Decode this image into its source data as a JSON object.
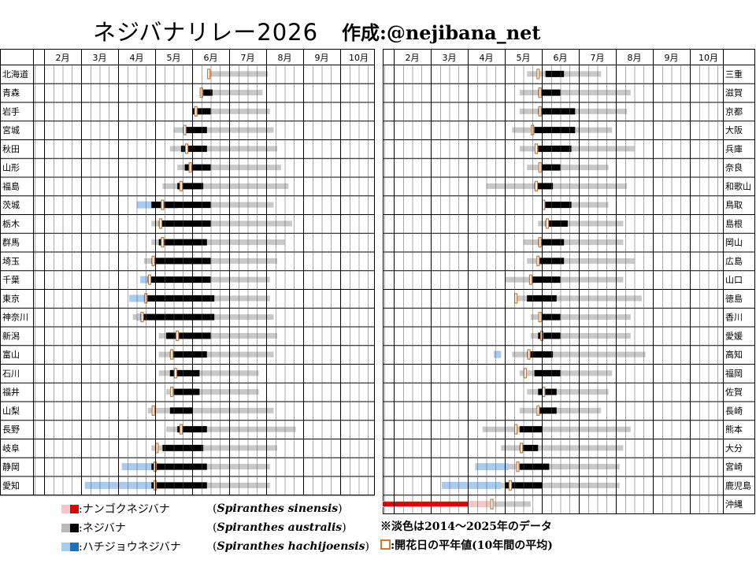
{
  "title": {
    "main": "ネジバナリレー2026",
    "author": "作成:@nejibana_net"
  },
  "chart_data": {
    "type": "heatmap",
    "months": [
      "2月",
      "3月",
      "4月",
      "5月",
      "6月",
      "7月",
      "8月",
      "9月",
      "10月"
    ],
    "x_range": [
      "1月下旬",
      "10月末"
    ],
    "left_prefectures": [
      "北海道",
      "青森",
      "岩手",
      "宮城",
      "秋田",
      "山形",
      "福島",
      "茨城",
      "栃木",
      "群馬",
      "埼玉",
      "千葉",
      "東京",
      "神奈川",
      "新潟",
      "富山",
      "石川",
      "福井",
      "山梨",
      "長野",
      "岐阜",
      "静岡",
      "愛知"
    ],
    "right_prefectures": [
      "三重",
      "滋賀",
      "京都",
      "大阪",
      "兵庫",
      "奈良",
      "和歌山",
      "鳥取",
      "島根",
      "岡山",
      "広島",
      "山口",
      "徳島",
      "香川",
      "愛媛",
      "高知",
      "福岡",
      "佐賀",
      "長崎",
      "熊本",
      "大分",
      "宮崎",
      "鹿児島",
      "沖縄"
    ],
    "colors": {
      "sinensis_dark": "#e00000",
      "sinensis_light": "#f4c8c8",
      "australis_dark": "#000000",
      "australis_light": "#c8c8c8",
      "hachijoensis_dark": "#1f6fbf",
      "hachijoensis_light": "#a8cbee",
      "average_marker": "#c87a3c"
    },
    "series": [
      {
        "name": "北海道",
        "gray": [
          [
            6.4,
            8.05
          ]
        ],
        "black": [],
        "avg": 6.45
      },
      {
        "name": "青森",
        "gray": [
          [
            6.2,
            7.9
          ]
        ],
        "black": [
          [
            6.3,
            6.55
          ]
        ],
        "avg": 6.25
      },
      {
        "name": "岩手",
        "gray": [
          [
            6.0,
            8.1
          ]
        ],
        "black": [
          [
            6.0,
            6.5
          ]
        ],
        "avg": 6.1
      },
      {
        "name": "宮城",
        "gray": [
          [
            5.5,
            8.2
          ]
        ],
        "black": [
          [
            5.75,
            6.4
          ]
        ],
        "avg": 5.8
      },
      {
        "name": "秋田",
        "gray": [
          [
            5.4,
            8.3
          ]
        ],
        "black": [
          [
            5.7,
            6.4
          ]
        ],
        "avg": 5.85
      },
      {
        "name": "山形",
        "gray": [
          [
            5.6,
            8.4
          ]
        ],
        "black": [
          [
            5.8,
            6.5
          ]
        ],
        "avg": 5.95
      },
      {
        "name": "福島",
        "gray": [
          [
            5.2,
            8.6
          ]
        ],
        "black": [
          [
            5.6,
            6.3
          ]
        ],
        "avg": 5.7
      },
      {
        "name": "茨城",
        "gray": [
          [
            4.7,
            8.2
          ]
        ],
        "black": [
          [
            4.9,
            6.5
          ]
        ],
        "avg": 5.2,
        "blue": [
          [
            4.5,
            5.6
          ]
        ]
      },
      {
        "name": "栃木",
        "gray": [
          [
            4.9,
            8.7
          ]
        ],
        "black": [
          [
            5.1,
            6.5
          ]
        ],
        "avg": 5.15
      },
      {
        "name": "群馬",
        "gray": [
          [
            4.9,
            8.5
          ]
        ],
        "black": [
          [
            5.1,
            6.4
          ]
        ],
        "avg": 5.2
      },
      {
        "name": "埼玉",
        "gray": [
          [
            4.7,
            8.3
          ]
        ],
        "black": [
          [
            4.9,
            6.5
          ]
        ],
        "avg": 4.95
      },
      {
        "name": "千葉",
        "gray": [
          [
            4.6,
            8.1
          ]
        ],
        "black": [
          [
            4.8,
            6.5
          ]
        ],
        "avg": 4.85,
        "blue": [
          [
            4.6,
            4.8
          ]
        ]
      },
      {
        "name": "東京",
        "gray": [
          [
            4.4,
            8.1
          ]
        ],
        "black": [
          [
            4.7,
            6.6
          ]
        ],
        "avg": 4.75,
        "blue": [
          [
            4.3,
            4.7
          ]
        ]
      },
      {
        "name": "神奈川",
        "gray": [
          [
            4.4,
            8.2
          ]
        ],
        "black": [
          [
            4.6,
            6.6
          ]
        ],
        "avg": 4.65,
        "blue": [
          [
            4.5,
            4.7
          ]
        ]
      },
      {
        "name": "新潟",
        "gray": [
          [
            5.1,
            8.3
          ]
        ],
        "black": [
          [
            5.3,
            6.5
          ]
        ],
        "avg": 5.6
      },
      {
        "name": "富山",
        "gray": [
          [
            5.1,
            8.2
          ]
        ],
        "black": [
          [
            5.4,
            6.4
          ]
        ],
        "avg": 5.45
      },
      {
        "name": "石川",
        "gray": [
          [
            5.1,
            7.8
          ]
        ],
        "black": [
          [
            5.4,
            6.2
          ]
        ],
        "avg": 5.55
      },
      {
        "name": "福井",
        "gray": [
          [
            5.3,
            7.8
          ]
        ],
        "black": [
          [
            5.5,
            6.2
          ]
        ],
        "avg": 5.45
      },
      {
        "name": "山梨",
        "gray": [
          [
            4.8,
            8.2
          ]
        ],
        "black": [
          [
            5.4,
            6.0
          ]
        ],
        "avg": 4.95
      },
      {
        "name": "長野",
        "gray": [
          [
            5.3,
            8.8
          ]
        ],
        "black": [
          [
            5.6,
            6.4
          ]
        ],
        "avg": 5.7
      },
      {
        "name": "岐阜",
        "gray": [
          [
            4.9,
            8.3
          ]
        ],
        "black": [
          [
            5.2,
            6.3
          ]
        ],
        "avg": 5.05
      },
      {
        "name": "静岡",
        "gray": [
          [
            4.7,
            8.1
          ]
        ],
        "black": [
          [
            4.9,
            6.4
          ]
        ],
        "avg": 5.0,
        "blue": [
          [
            4.1,
            5.1
          ]
        ]
      },
      {
        "name": "愛知",
        "gray": [
          [
            4.6,
            8.1
          ]
        ],
        "black": [
          [
            4.9,
            6.4
          ]
        ],
        "avg": 5.0,
        "blue": [
          [
            3.1,
            4.9
          ]
        ]
      },
      {
        "name": "三重",
        "gray": [
          [
            5.6,
            7.6
          ]
        ],
        "black": [
          [
            6.1,
            6.6
          ]
        ],
        "avg": 5.9
      },
      {
        "name": "滋賀",
        "gray": [
          [
            5.4,
            8.4
          ]
        ],
        "black": [
          [
            5.9,
            6.5
          ]
        ],
        "avg": 5.95
      },
      {
        "name": "京都",
        "gray": [
          [
            5.4,
            8.3
          ]
        ],
        "black": [
          [
            5.9,
            6.9
          ]
        ],
        "avg": 5.95
      },
      {
        "name": "大阪",
        "gray": [
          [
            5.2,
            7.9
          ]
        ],
        "black": [
          [
            5.8,
            6.9
          ]
        ],
        "avg": 5.75
      },
      {
        "name": "兵庫",
        "gray": [
          [
            5.4,
            8.5
          ]
        ],
        "black": [
          [
            5.9,
            6.8
          ]
        ],
        "avg": 5.85
      },
      {
        "name": "奈良",
        "gray": [
          [
            5.6,
            7.8
          ]
        ],
        "black": [
          [
            6.0,
            6.5
          ]
        ],
        "avg": 5.95
      },
      {
        "name": "和歌山",
        "gray": [
          [
            4.5,
            8.3
          ]
        ],
        "black": [
          [
            5.8,
            6.3
          ]
        ],
        "avg": 5.85
      },
      {
        "name": "鳥取",
        "gray": [
          [
            6.0,
            7.8
          ]
        ],
        "black": [
          [
            6.0,
            6.8
          ]
        ],
        "avg": 6.05
      },
      {
        "name": "島根",
        "gray": [
          [
            5.9,
            8.2
          ]
        ],
        "black": [
          [
            6.1,
            6.7
          ]
        ],
        "avg": 6.15
      },
      {
        "name": "岡山",
        "gray": [
          [
            5.5,
            8.2
          ]
        ],
        "black": [
          [
            5.9,
            6.6
          ]
        ],
        "avg": 5.95
      },
      {
        "name": "広島",
        "gray": [
          [
            5.6,
            8.5
          ]
        ],
        "black": [
          [
            5.9,
            6.6
          ]
        ],
        "avg": 5.9
      },
      {
        "name": "山口",
        "gray": [
          [
            5.0,
            8.2
          ]
        ],
        "black": [
          [
            5.7,
            6.5
          ]
        ],
        "avg": 5.7
      },
      {
        "name": "徳島",
        "gray": [
          [
            5.3,
            8.7
          ]
        ],
        "black": [
          [
            5.6,
            6.4
          ]
        ],
        "avg": 5.3
      },
      {
        "name": "香川",
        "gray": [
          [
            5.7,
            8.4
          ]
        ],
        "black": [
          [
            6.0,
            6.5
          ]
        ],
        "avg": 5.95
      },
      {
        "name": "愛媛",
        "gray": [
          [
            5.7,
            8.4
          ]
        ],
        "black": [
          [
            5.9,
            6.5
          ]
        ],
        "avg": 6.0
      },
      {
        "name": "高知",
        "gray": [
          [
            5.2,
            8.8
          ]
        ],
        "black": [
          [
            5.6,
            6.3
          ]
        ],
        "avg": 5.65,
        "blue": [
          [
            4.7,
            4.9
          ]
        ]
      },
      {
        "name": "福岡",
        "gray": [
          [
            5.4,
            7.9
          ]
        ],
        "black": [
          [
            5.8,
            6.5
          ]
        ],
        "avg": 5.55
      },
      {
        "name": "佐賀",
        "gray": [
          [
            5.6,
            7.8
          ]
        ],
        "black": [
          [
            5.9,
            6.4
          ]
        ],
        "avg": 6.05
      },
      {
        "name": "長崎",
        "gray": [
          [
            5.4,
            7.6
          ]
        ],
        "black": [
          [
            5.9,
            6.4
          ]
        ],
        "avg": 5.9
      },
      {
        "name": "熊本",
        "gray": [
          [
            4.4,
            8.4
          ]
        ],
        "black": [
          [
            5.4,
            6.0
          ]
        ],
        "avg": 5.3
      },
      {
        "name": "大分",
        "gray": [
          [
            4.9,
            8.2
          ]
        ],
        "black": [
          [
            5.4,
            5.9
          ]
        ],
        "avg": 5.45
      },
      {
        "name": "宮崎",
        "gray": [
          [
            4.5,
            8.1
          ]
        ],
        "black": [
          [
            5.4,
            6.2
          ]
        ],
        "avg": 5.35,
        "blue": [
          [
            4.2,
            5.1
          ]
        ]
      },
      {
        "name": "鹿児島",
        "gray": [
          [
            4.1,
            8.1
          ]
        ],
        "black": [
          [
            5.0,
            6.0
          ]
        ],
        "avg": 5.15,
        "blue": [
          [
            3.3,
            4.9
          ]
        ]
      },
      {
        "name": "沖縄",
        "gray": [
          [
            4.7,
            5.7
          ]
        ],
        "black": [],
        "avg": 4.65,
        "red": [
          [
            1.0,
            4.0
          ]
        ],
        "redlight": [
          [
            1.0,
            4.6
          ]
        ]
      }
    ]
  },
  "legend": {
    "sinensis_label": ":ナンゴクネジバナ",
    "sinensis_sci": "Spiranthes sinensis",
    "australis_label": ":ネジバナ",
    "australis_sci": "Spiranthes australis",
    "hachijoensis_label": ":ハチジョウネジバナ",
    "hachijoensis_sci": "Spiranthes hachijoensis",
    "note_light": "※淡色は2014～2025年のデータ",
    "note_avg": ":開花日の平年値(10年間の平均)"
  }
}
